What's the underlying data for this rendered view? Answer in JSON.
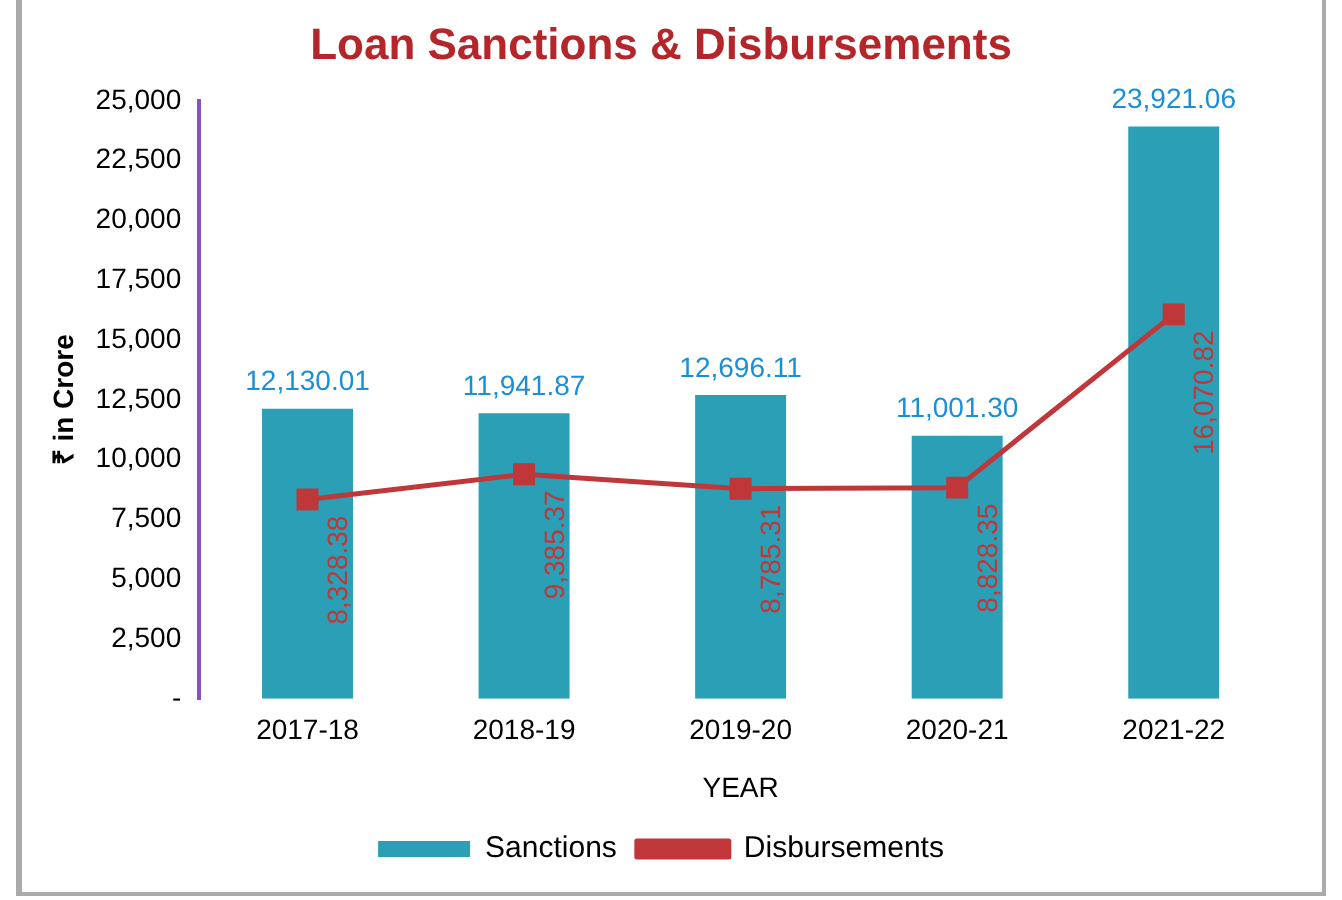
{
  "chart_data": {
    "type": "bar",
    "title": "Loan Sanctions & Disbursements",
    "xlabel": "YEAR",
    "ylabel": "₹ in Crore",
    "categories": [
      "2017-18",
      "2018-19",
      "2019-20",
      "2020-21",
      "2021-22"
    ],
    "series": [
      {
        "name": "Sanctions",
        "color": "#2a9fb5",
        "values": [
          12130.01,
          11941.87,
          12696.11,
          11001.3,
          23921.06
        ],
        "value_labels": [
          "12,130.01",
          "11,941.87",
          "12,696.11",
          "11,001.30",
          "23,921.06"
        ]
      },
      {
        "name": "Disbursements",
        "type": "line",
        "color": "#c0373a",
        "marker": "square",
        "values": [
          8328.38,
          9385.37,
          8785.31,
          8828.35,
          16070.82
        ],
        "value_labels": [
          "8,328.38",
          "9,385.37",
          "8,785.31",
          "8,828.35",
          "16,070.82"
        ]
      }
    ],
    "ylim": [
      0,
      25000
    ],
    "yticks": [
      {
        "value": 0,
        "label": "-"
      },
      {
        "value": 2500,
        "label": "2,500"
      },
      {
        "value": 5000,
        "label": "5,000"
      },
      {
        "value": 7500,
        "label": "7,500"
      },
      {
        "value": 10000,
        "label": "10,000"
      },
      {
        "value": 12500,
        "label": "12,500"
      },
      {
        "value": 15000,
        "label": "15,000"
      },
      {
        "value": 17500,
        "label": "17,500"
      },
      {
        "value": 20000,
        "label": "20,000"
      },
      {
        "value": 22500,
        "label": "22,500"
      },
      {
        "value": 25000,
        "label": "25,000"
      }
    ],
    "grid": false,
    "legend": "bottom"
  }
}
